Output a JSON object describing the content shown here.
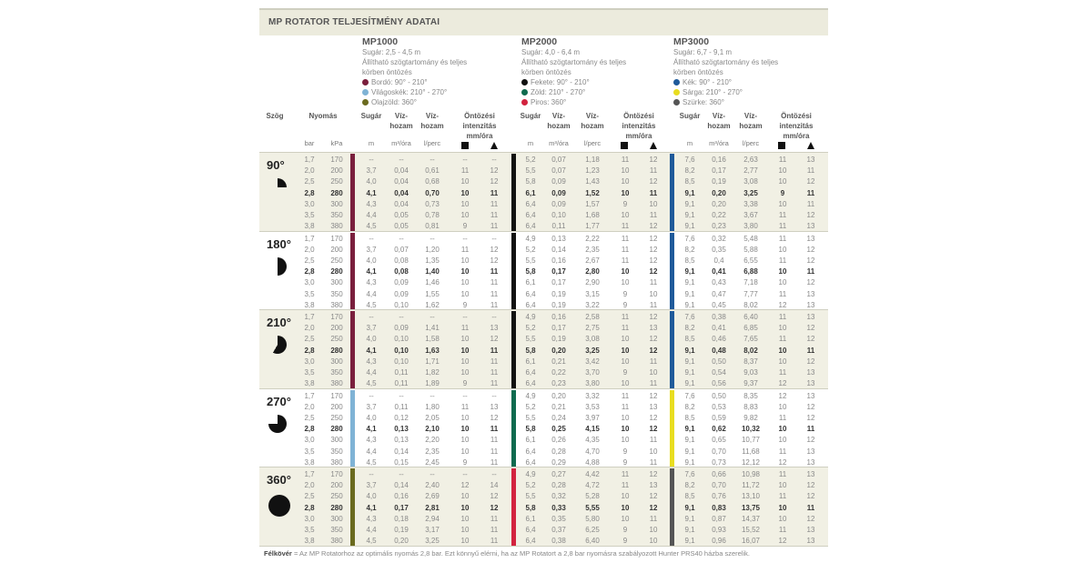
{
  "title": "MP ROTATOR TELJESÍTMÉNY ADATAI",
  "models": [
    {
      "name": "MP1000",
      "range": "Sugár: 2,5 - 4,5 m",
      "desc1": "Állítható szögtartomány és teljes",
      "desc2": "körben öntözés",
      "legend": [
        {
          "label": "Bordó: 90° - 210°",
          "color": "#7a1f3d"
        },
        {
          "label": "Világoskék: 210° - 270°",
          "color": "#7fb3d5"
        },
        {
          "label": "Olajzöld: 360°",
          "color": "#6b6b1f"
        }
      ]
    },
    {
      "name": "MP2000",
      "range": "Sugár: 4,0 - 6,4 m",
      "desc1": "Állítható szögtartomány és teljes",
      "desc2": "körben öntözés",
      "legend": [
        {
          "label": "Fekete: 90° - 210°",
          "color": "#111111"
        },
        {
          "label": "Zöld: 210° - 270°",
          "color": "#0f6b4f"
        },
        {
          "label": "Piros: 360°",
          "color": "#d2233f"
        }
      ]
    },
    {
      "name": "MP3000",
      "range": "Sugár: 6,7 - 9,1 m",
      "desc1": "Állítható szögtartomány és teljes",
      "desc2": "körben öntözés",
      "legend": [
        {
          "label": "Kék: 90° - 210°",
          "color": "#1f5a9a"
        },
        {
          "label": "Sárga: 210° - 270°",
          "color": "#e8dd20"
        },
        {
          "label": "Szürke: 360°",
          "color": "#555555"
        }
      ]
    }
  ],
  "headers": {
    "angle": "Szög",
    "pressure": "Nyomás",
    "radius": "Sugár",
    "flow1a": "Víz-",
    "flow1b": "hozam",
    "flow2a": "Víz-",
    "flow2b": "hozam",
    "int1": "Öntözési",
    "int2": "intenzitás",
    "int3": "mm/óra"
  },
  "units": {
    "bar": "bar",
    "kpa": "kPa",
    "m": "m",
    "m3": "m³/óra",
    "lperc": "l/perc"
  },
  "sections": [
    {
      "angle": "90°",
      "deg": 90,
      "bg": "#f1f0e4",
      "colors": [
        "#7a1f3d",
        "#111111",
        "#1f5a9a"
      ],
      "rows": [
        [
          "1,7",
          "170",
          "--",
          "--",
          "--",
          "--",
          "--",
          "5,2",
          "0,07",
          "1,18",
          "11",
          "12",
          "7,6",
          "0,16",
          "2,63",
          "11",
          "13"
        ],
        [
          "2,0",
          "200",
          "3,7",
          "0,04",
          "0,61",
          "11",
          "12",
          "5,5",
          "0,07",
          "1,23",
          "10",
          "11",
          "8,2",
          "0,17",
          "2,77",
          "10",
          "11"
        ],
        [
          "2,5",
          "250",
          "4,0",
          "0,04",
          "0,68",
          "10",
          "12",
          "5,8",
          "0,09",
          "1,43",
          "10",
          "12",
          "8,5",
          "0,19",
          "3,08",
          "10",
          "12"
        ],
        [
          "2,8",
          "280",
          "4,1",
          "0,04",
          "0,70",
          "10",
          "11",
          "6,1",
          "0,09",
          "1,52",
          "10",
          "11",
          "9,1",
          "0,20",
          "3,25",
          "9",
          "11"
        ],
        [
          "3,0",
          "300",
          "4,3",
          "0,04",
          "0,73",
          "10",
          "11",
          "6,4",
          "0,09",
          "1,57",
          "9",
          "10",
          "9,1",
          "0,20",
          "3,38",
          "10",
          "11"
        ],
        [
          "3,5",
          "350",
          "4,4",
          "0,05",
          "0,78",
          "10",
          "11",
          "6,4",
          "0,10",
          "1,68",
          "10",
          "11",
          "9,1",
          "0,22",
          "3,67",
          "11",
          "12"
        ],
        [
          "3,8",
          "380",
          "4,5",
          "0,05",
          "0,81",
          "9",
          "11",
          "6,4",
          "0,11",
          "1,77",
          "11",
          "12",
          "9,1",
          "0,23",
          "3,80",
          "11",
          "13"
        ]
      ]
    },
    {
      "angle": "180°",
      "deg": 180,
      "bg": "#ffffff",
      "colors": [
        "#7a1f3d",
        "#111111",
        "#1f5a9a"
      ],
      "rows": [
        [
          "1,7",
          "170",
          "--",
          "--",
          "--",
          "--",
          "--",
          "4,9",
          "0,13",
          "2,22",
          "11",
          "12",
          "7,6",
          "0,32",
          "5,48",
          "11",
          "13"
        ],
        [
          "2,0",
          "200",
          "3,7",
          "0,07",
          "1,20",
          "11",
          "12",
          "5,2",
          "0,14",
          "2,35",
          "11",
          "12",
          "8,2",
          "0,35",
          "5,88",
          "10",
          "12"
        ],
        [
          "2,5",
          "250",
          "4,0",
          "0,08",
          "1,35",
          "10",
          "12",
          "5,5",
          "0,16",
          "2,67",
          "11",
          "12",
          "8,5",
          "0,4",
          "6,55",
          "11",
          "12"
        ],
        [
          "2,8",
          "280",
          "4,1",
          "0,08",
          "1,40",
          "10",
          "11",
          "5,8",
          "0,17",
          "2,80",
          "10",
          "12",
          "9,1",
          "0,41",
          "6,88",
          "10",
          "11"
        ],
        [
          "3,0",
          "300",
          "4,3",
          "0,09",
          "1,46",
          "10",
          "11",
          "6,1",
          "0,17",
          "2,90",
          "10",
          "11",
          "9,1",
          "0,43",
          "7,18",
          "10",
          "12"
        ],
        [
          "3,5",
          "350",
          "4,4",
          "0,09",
          "1,55",
          "10",
          "11",
          "6,4",
          "0,19",
          "3,15",
          "9",
          "10",
          "9,1",
          "0,47",
          "7,77",
          "11",
          "13"
        ],
        [
          "3,8",
          "380",
          "4,5",
          "0,10",
          "1,62",
          "9",
          "11",
          "6,4",
          "0,19",
          "3,22",
          "9",
          "11",
          "9,1",
          "0,45",
          "8,02",
          "12",
          "13"
        ]
      ]
    },
    {
      "angle": "210°",
      "deg": 210,
      "bg": "#f1f0e4",
      "colors": [
        "#7a1f3d",
        "#111111",
        "#1f5a9a"
      ],
      "rows": [
        [
          "1,7",
          "170",
          "--",
          "--",
          "--",
          "--",
          "--",
          "4,9",
          "0,16",
          "2,58",
          "11",
          "12",
          "7,6",
          "0,38",
          "6,40",
          "11",
          "13"
        ],
        [
          "2,0",
          "200",
          "3,7",
          "0,09",
          "1,41",
          "11",
          "13",
          "5,2",
          "0,17",
          "2,75",
          "11",
          "13",
          "8,2",
          "0,41",
          "6,85",
          "10",
          "12"
        ],
        [
          "2,5",
          "250",
          "4,0",
          "0,10",
          "1,58",
          "10",
          "12",
          "5,5",
          "0,19",
          "3,08",
          "10",
          "12",
          "8,5",
          "0,46",
          "7,65",
          "11",
          "12"
        ],
        [
          "2,8",
          "280",
          "4,1",
          "0,10",
          "1,63",
          "10",
          "11",
          "5,8",
          "0,20",
          "3,25",
          "10",
          "12",
          "9,1",
          "0,48",
          "8,02",
          "10",
          "11"
        ],
        [
          "3,0",
          "300",
          "4,3",
          "0,10",
          "1,71",
          "10",
          "11",
          "6,1",
          "0,21",
          "3,42",
          "10",
          "11",
          "9,1",
          "0,50",
          "8,37",
          "10",
          "12"
        ],
        [
          "3,5",
          "350",
          "4,4",
          "0,11",
          "1,82",
          "10",
          "11",
          "6,4",
          "0,22",
          "3,70",
          "9",
          "10",
          "9,1",
          "0,54",
          "9,03",
          "11",
          "13"
        ],
        [
          "3,8",
          "380",
          "4,5",
          "0,11",
          "1,89",
          "9",
          "11",
          "6,4",
          "0,23",
          "3,80",
          "10",
          "11",
          "9,1",
          "0,56",
          "9,37",
          "12",
          "13"
        ]
      ]
    },
    {
      "angle": "270°",
      "deg": 270,
      "bg": "#ffffff",
      "colors": [
        "#7fb3d5",
        "#0f6b4f",
        "#e8dd20"
      ],
      "rows": [
        [
          "1,7",
          "170",
          "--",
          "--",
          "--",
          "--",
          "--",
          "4,9",
          "0,20",
          "3,32",
          "11",
          "12",
          "7,6",
          "0,50",
          "8,35",
          "12",
          "13"
        ],
        [
          "2,0",
          "200",
          "3,7",
          "0,11",
          "1,80",
          "11",
          "13",
          "5,2",
          "0,21",
          "3,53",
          "11",
          "13",
          "8,2",
          "0,53",
          "8,83",
          "10",
          "12"
        ],
        [
          "2,5",
          "250",
          "4,0",
          "0,12",
          "2,05",
          "10",
          "12",
          "5,5",
          "0,24",
          "3,97",
          "10",
          "12",
          "8,5",
          "0,59",
          "9,82",
          "11",
          "12"
        ],
        [
          "2,8",
          "280",
          "4,1",
          "0,13",
          "2,10",
          "10",
          "11",
          "5,8",
          "0,25",
          "4,15",
          "10",
          "12",
          "9,1",
          "0,62",
          "10,32",
          "10",
          "11"
        ],
        [
          "3,0",
          "300",
          "4,3",
          "0,13",
          "2,20",
          "10",
          "11",
          "6,1",
          "0,26",
          "4,35",
          "10",
          "11",
          "9,1",
          "0,65",
          "10,77",
          "10",
          "12"
        ],
        [
          "3,5",
          "350",
          "4,4",
          "0,14",
          "2,35",
          "10",
          "11",
          "6,4",
          "0,28",
          "4,70",
          "9",
          "10",
          "9,1",
          "0,70",
          "11,68",
          "11",
          "13"
        ],
        [
          "3,8",
          "380",
          "4,5",
          "0,15",
          "2,45",
          "9",
          "11",
          "6,4",
          "0,29",
          "4,88",
          "9",
          "11",
          "9,1",
          "0,73",
          "12,12",
          "12",
          "13"
        ]
      ]
    },
    {
      "angle": "360°",
      "deg": 360,
      "bg": "#f1f0e4",
      "colors": [
        "#6b6b1f",
        "#d2233f",
        "#555555"
      ],
      "rows": [
        [
          "1,7",
          "170",
          "--",
          "--",
          "--",
          "--",
          "--",
          "4,9",
          "0,27",
          "4,42",
          "11",
          "12",
          "7,6",
          "0,66",
          "10,98",
          "11",
          "13"
        ],
        [
          "2,0",
          "200",
          "3,7",
          "0,14",
          "2,40",
          "12",
          "14",
          "5,2",
          "0,28",
          "4,72",
          "11",
          "13",
          "8,2",
          "0,70",
          "11,72",
          "10",
          "12"
        ],
        [
          "2,5",
          "250",
          "4,0",
          "0,16",
          "2,69",
          "10",
          "12",
          "5,5",
          "0,32",
          "5,28",
          "10",
          "12",
          "8,5",
          "0,76",
          "13,10",
          "11",
          "12"
        ],
        [
          "2,8",
          "280",
          "4,1",
          "0,17",
          "2,81",
          "10",
          "12",
          "5,8",
          "0,33",
          "5,55",
          "10",
          "12",
          "9,1",
          "0,83",
          "13,75",
          "10",
          "11"
        ],
        [
          "3,0",
          "300",
          "4,3",
          "0,18",
          "2,94",
          "10",
          "11",
          "6,1",
          "0,35",
          "5,80",
          "10",
          "11",
          "9,1",
          "0,87",
          "14,37",
          "10",
          "12"
        ],
        [
          "3,5",
          "350",
          "4,4",
          "0,19",
          "3,17",
          "10",
          "11",
          "6,4",
          "0,37",
          "6,25",
          "9",
          "10",
          "9,1",
          "0,93",
          "15,52",
          "11",
          "13"
        ],
        [
          "3,8",
          "380",
          "4,5",
          "0,20",
          "3,25",
          "10",
          "11",
          "6,4",
          "0,38",
          "6,40",
          "9",
          "10",
          "9,1",
          "0,96",
          "16,07",
          "12",
          "13"
        ]
      ]
    }
  ],
  "optimal_pressure_bar": "2,8",
  "footnote": {
    "bold_label": "Félkövér",
    "text": " = Az MP Rotatorhoz az optimális nyomás 2,8 bar. Ezt könnyű elérni, ha az MP Rotatort a 2,8 bar nyomásra szabályozott Hunter PRS40 házba szerelik."
  }
}
